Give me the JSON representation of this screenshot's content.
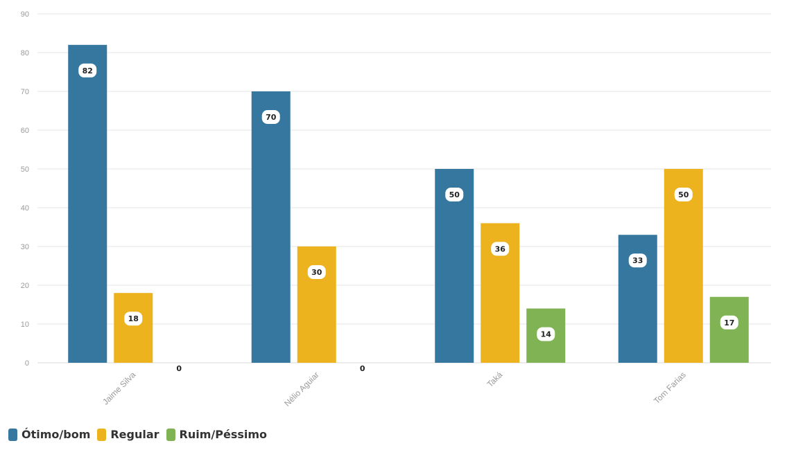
{
  "chart_data": {
    "type": "bar",
    "categories": [
      "Jaime Silva",
      "Nélio Aguiar",
      "Taká",
      "Tom Farias"
    ],
    "series": [
      {
        "name": "Ótimo/bom",
        "color": "#35779f",
        "values": [
          82,
          70,
          50,
          33
        ]
      },
      {
        "name": "Regular",
        "color": "#edb31f",
        "values": [
          18,
          30,
          36,
          50
        ]
      },
      {
        "name": "Ruim/Péssimo",
        "color": "#7fb353",
        "values": [
          0,
          0,
          14,
          17
        ]
      }
    ],
    "ylim": [
      0,
      90
    ],
    "yticks": [
      0,
      10,
      20,
      30,
      40,
      50,
      60,
      70,
      80,
      90
    ],
    "grid": true,
    "legend_position": "bottom-left",
    "data_labels": true
  }
}
